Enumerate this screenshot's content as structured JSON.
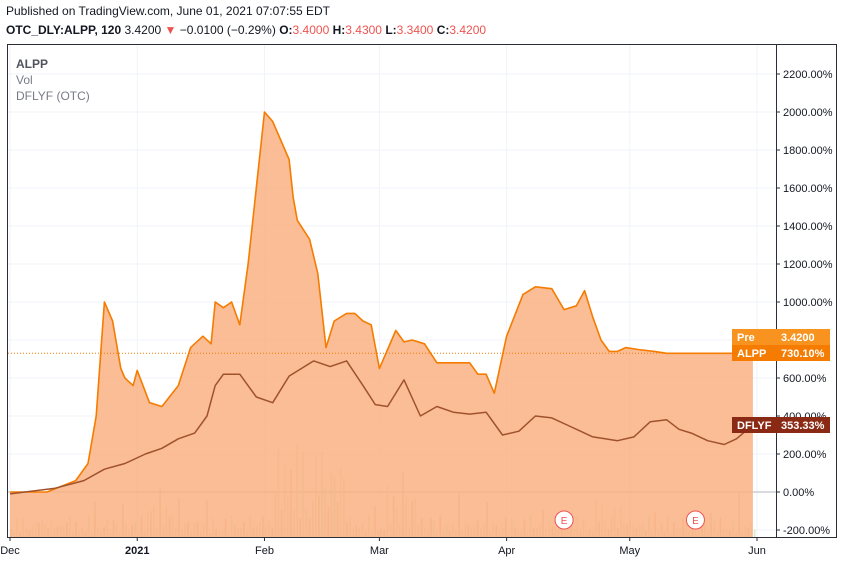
{
  "header": {
    "published": "Published on TradingView.com, June 01, 2021 07:07:55 EDT",
    "symbol": "OTC_DLY:ALPP, 120",
    "price": "3.4200",
    "change_arrow": "▼",
    "change": "−0.0100 (−0.29%)",
    "o_label": "O:",
    "o_value": "3.4000",
    "h_label": "H:",
    "h_value": "3.4300",
    "l_label": "L:",
    "l_value": "3.3400",
    "c_label": "C:",
    "c_value": "3.4200"
  },
  "legend": {
    "main_series": "ALPP",
    "volume": "Vol",
    "compare": "DFLYF (OTC)"
  },
  "colors": {
    "area_fill": "#f9b183",
    "alpp_line": "#f57c00",
    "dflyf_line": "#a0522d",
    "pre_tag": "#f7931e",
    "alpp_tag": "#f57c00",
    "dflyf_tag": "#8b2a14",
    "earnings": "#ef5350"
  },
  "tags": {
    "pre_label": "Pre",
    "pre_value": "3.4200",
    "alpp_label": "ALPP",
    "alpp_value": "730.10%",
    "dflyf_label": "DFLYF",
    "dflyf_value": "353.33%"
  },
  "earnings_markers": [
    "E",
    "E"
  ],
  "chart_data": {
    "type": "area",
    "title": "",
    "xlabel": "",
    "ylabel": "",
    "y_unit": "%",
    "ylim": [
      -200,
      2200
    ],
    "y_ticks": [
      "2200.00%",
      "2000.00%",
      "1800.00%",
      "1600.00%",
      "1400.00%",
      "1200.00%",
      "1000.00%",
      "800.00%",
      "600.00%",
      "400.00%",
      "200.00%",
      "0.00%",
      "-200.00%"
    ],
    "y_tick_values": [
      2200,
      2000,
      1800,
      1600,
      1400,
      1200,
      1000,
      800,
      600,
      400,
      200,
      0,
      -200
    ],
    "x_ticks": [
      "Dec",
      "2021",
      "Feb",
      "Mar",
      "Apr",
      "May",
      "Jun"
    ],
    "x_tick_dates": [
      "2020-12-01",
      "2021-01-01",
      "2021-02-01",
      "2021-03-01",
      "2021-04-01",
      "2021-05-01",
      "2021-06-01"
    ],
    "x_range": [
      "2020-12-01",
      "2021-05-31"
    ],
    "grid": true,
    "series": [
      {
        "name": "ALPP",
        "style": "area",
        "x": [
          "2020-12-01",
          "2020-12-10",
          "2020-12-17",
          "2020-12-20",
          "2020-12-22",
          "2020-12-24",
          "2020-12-26",
          "2020-12-28",
          "2020-12-29",
          "2020-12-31",
          "2021-01-01",
          "2021-01-04",
          "2021-01-07",
          "2021-01-11",
          "2021-01-14",
          "2021-01-17",
          "2021-01-19",
          "2021-01-20",
          "2021-01-22",
          "2021-01-24",
          "2021-01-26",
          "2021-01-28",
          "2021-01-30",
          "2021-02-01",
          "2021-02-03",
          "2021-02-05",
          "2021-02-07",
          "2021-02-08",
          "2021-02-09",
          "2021-02-12",
          "2021-02-14",
          "2021-02-16",
          "2021-02-18",
          "2021-02-21",
          "2021-02-23",
          "2021-02-25",
          "2021-02-27",
          "2021-03-01",
          "2021-03-04",
          "2021-03-05",
          "2021-03-07",
          "2021-03-09",
          "2021-03-12",
          "2021-03-15",
          "2021-03-17",
          "2021-03-20",
          "2021-03-23",
          "2021-03-25",
          "2021-03-27",
          "2021-03-29",
          "2021-04-01",
          "2021-04-05",
          "2021-04-08",
          "2021-04-12",
          "2021-04-15",
          "2021-04-18",
          "2021-04-20",
          "2021-04-22",
          "2021-04-24",
          "2021-04-26",
          "2021-04-28",
          "2021-04-30",
          "2021-05-03",
          "2021-05-07",
          "2021-05-10",
          "2021-05-13",
          "2021-05-17",
          "2021-05-20",
          "2021-05-24",
          "2021-05-27",
          "2021-05-31"
        ],
        "values": [
          0,
          0,
          60,
          150,
          400,
          1000,
          900,
          650,
          600,
          560,
          640,
          470,
          450,
          560,
          760,
          820,
          780,
          1000,
          970,
          1000,
          880,
          1200,
          1600,
          2000,
          1950,
          1850,
          1750,
          1550,
          1430,
          1330,
          1150,
          760,
          900,
          940,
          940,
          900,
          880,
          650,
          800,
          850,
          790,
          800,
          780,
          680,
          680,
          680,
          680,
          620,
          620,
          520,
          820,
          1040,
          1080,
          1070,
          960,
          980,
          1060,
          920,
          800,
          740,
          740,
          760,
          750,
          740,
          730,
          730,
          730,
          730,
          730,
          730,
          730
        ]
      },
      {
        "name": "DFLYF",
        "style": "line",
        "x": [
          "2020-12-01",
          "2020-12-12",
          "2020-12-19",
          "2020-12-24",
          "2020-12-29",
          "2021-01-03",
          "2021-01-07",
          "2021-01-11",
          "2021-01-15",
          "2021-01-18",
          "2021-01-20",
          "2021-01-22",
          "2021-01-26",
          "2021-01-30",
          "2021-02-03",
          "2021-02-07",
          "2021-02-10",
          "2021-02-13",
          "2021-02-17",
          "2021-02-21",
          "2021-02-25",
          "2021-02-28",
          "2021-03-03",
          "2021-03-07",
          "2021-03-11",
          "2021-03-15",
          "2021-03-19",
          "2021-03-23",
          "2021-03-27",
          "2021-03-31",
          "2021-04-04",
          "2021-04-08",
          "2021-04-12",
          "2021-04-16",
          "2021-04-19",
          "2021-04-22",
          "2021-04-25",
          "2021-04-28",
          "2021-05-02",
          "2021-05-06",
          "2021-05-10",
          "2021-05-13",
          "2021-05-16",
          "2021-05-20",
          "2021-05-24",
          "2021-05-27",
          "2021-05-31"
        ],
        "values": [
          -10,
          20,
          60,
          120,
          150,
          200,
          230,
          280,
          310,
          400,
          560,
          620,
          620,
          500,
          470,
          610,
          650,
          690,
          660,
          690,
          560,
          460,
          450,
          590,
          400,
          450,
          420,
          410,
          420,
          300,
          320,
          400,
          390,
          350,
          320,
          290,
          280,
          270,
          290,
          370,
          380,
          330,
          310,
          270,
          250,
          280,
          353.33
        ]
      },
      {
        "name": "Vol",
        "style": "histogram"
      }
    ]
  }
}
